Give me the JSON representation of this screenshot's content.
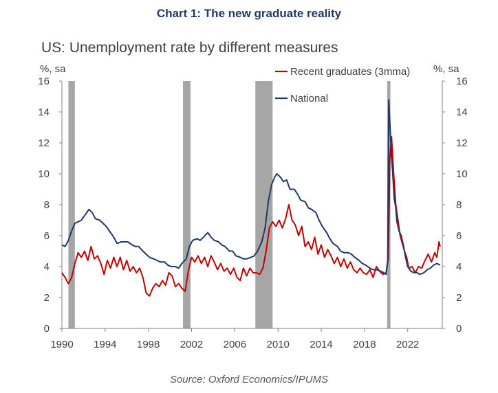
{
  "header": {
    "title": "Chart 1: The new graduate reality"
  },
  "footer": {
    "source": "Source: Oxford Economics/IPUMS"
  },
  "colors": {
    "recent_graduates": "#c00000",
    "national": "#1f3864",
    "recession": "#a6a6a6",
    "title": "#1f3864"
  },
  "chart_data": {
    "type": "line",
    "title": "US: Unemployment rate by different measures",
    "ylabel_left": "%, sa",
    "ylabel_right": "%, sa",
    "xlim": [
      1990,
      2025.2
    ],
    "ylim": [
      0,
      16
    ],
    "x_ticks": [
      "1990",
      "1994",
      "1998",
      "2002",
      "2006",
      "2010",
      "2014",
      "2018",
      "2022"
    ],
    "y_ticks": [
      "0",
      "2",
      "4",
      "6",
      "8",
      "10",
      "12",
      "14",
      "16"
    ],
    "legend_position": "top-right",
    "recessions": [
      [
        1990.6,
        1991.2
      ],
      [
        2001.2,
        2001.9
      ],
      [
        2007.9,
        2009.5
      ],
      [
        2020.1,
        2020.4
      ]
    ],
    "series": [
      {
        "name": "Recent graduates (3mma)",
        "color": "#c00000",
        "points": [
          [
            1990.0,
            3.6
          ],
          [
            1990.3,
            3.3
          ],
          [
            1990.6,
            2.9
          ],
          [
            1990.9,
            3.3
          ],
          [
            1991.2,
            4.2
          ],
          [
            1991.5,
            4.9
          ],
          [
            1991.8,
            4.6
          ],
          [
            1992.1,
            5.0
          ],
          [
            1992.4,
            4.4
          ],
          [
            1992.7,
            5.3
          ],
          [
            1993.0,
            4.5
          ],
          [
            1993.3,
            4.7
          ],
          [
            1993.6,
            4.2
          ],
          [
            1993.9,
            3.5
          ],
          [
            1994.2,
            4.4
          ],
          [
            1994.5,
            3.9
          ],
          [
            1994.8,
            4.6
          ],
          [
            1995.1,
            4.0
          ],
          [
            1995.4,
            4.6
          ],
          [
            1995.7,
            3.8
          ],
          [
            1996.0,
            4.4
          ],
          [
            1996.3,
            3.7
          ],
          [
            1996.6,
            4.0
          ],
          [
            1996.9,
            3.6
          ],
          [
            1997.2,
            3.9
          ],
          [
            1997.5,
            3.3
          ],
          [
            1997.8,
            2.3
          ],
          [
            1998.1,
            2.1
          ],
          [
            1998.4,
            2.6
          ],
          [
            1998.7,
            2.9
          ],
          [
            1999.0,
            2.7
          ],
          [
            1999.3,
            3.1
          ],
          [
            1999.6,
            2.8
          ],
          [
            1999.9,
            3.6
          ],
          [
            2000.2,
            3.4
          ],
          [
            2000.5,
            2.7
          ],
          [
            2000.8,
            2.9
          ],
          [
            2001.1,
            2.6
          ],
          [
            2001.4,
            2.4
          ],
          [
            2001.7,
            3.7
          ],
          [
            2002.0,
            4.6
          ],
          [
            2002.3,
            4.3
          ],
          [
            2002.6,
            4.7
          ],
          [
            2002.9,
            4.2
          ],
          [
            2003.2,
            4.6
          ],
          [
            2003.5,
            4.0
          ],
          [
            2003.8,
            4.7
          ],
          [
            2004.1,
            4.3
          ],
          [
            2004.4,
            3.8
          ],
          [
            2004.7,
            4.2
          ],
          [
            2005.0,
            3.7
          ],
          [
            2005.3,
            3.9
          ],
          [
            2005.6,
            3.5
          ],
          [
            2005.9,
            3.9
          ],
          [
            2006.2,
            3.3
          ],
          [
            2006.5,
            3.1
          ],
          [
            2006.8,
            3.9
          ],
          [
            2007.1,
            3.4
          ],
          [
            2007.4,
            3.9
          ],
          [
            2007.7,
            3.6
          ],
          [
            2008.0,
            3.6
          ],
          [
            2008.3,
            3.5
          ],
          [
            2008.6,
            3.9
          ],
          [
            2008.9,
            5.0
          ],
          [
            2009.2,
            6.5
          ],
          [
            2009.5,
            6.9
          ],
          [
            2009.8,
            6.6
          ],
          [
            2010.1,
            7.0
          ],
          [
            2010.4,
            6.5
          ],
          [
            2010.7,
            7.1
          ],
          [
            2011.0,
            8.0
          ],
          [
            2011.3,
            7.0
          ],
          [
            2011.6,
            6.7
          ],
          [
            2011.9,
            6.0
          ],
          [
            2012.2,
            6.6
          ],
          [
            2012.5,
            5.3
          ],
          [
            2012.8,
            5.6
          ],
          [
            2013.1,
            5.1
          ],
          [
            2013.4,
            5.9
          ],
          [
            2013.7,
            4.8
          ],
          [
            2014.0,
            5.4
          ],
          [
            2014.3,
            4.6
          ],
          [
            2014.6,
            5.1
          ],
          [
            2014.9,
            4.7
          ],
          [
            2015.2,
            4.2
          ],
          [
            2015.5,
            4.6
          ],
          [
            2015.8,
            4.0
          ],
          [
            2016.1,
            4.5
          ],
          [
            2016.4,
            3.9
          ],
          [
            2016.7,
            4.3
          ],
          [
            2017.0,
            3.8
          ],
          [
            2017.3,
            3.6
          ],
          [
            2017.6,
            3.9
          ],
          [
            2017.9,
            3.6
          ],
          [
            2018.2,
            3.5
          ],
          [
            2018.5,
            3.8
          ],
          [
            2018.8,
            3.3
          ],
          [
            2019.1,
            4.0
          ],
          [
            2019.4,
            3.7
          ],
          [
            2019.7,
            3.5
          ],
          [
            2020.0,
            3.6
          ],
          [
            2020.2,
            4.5
          ],
          [
            2020.35,
            11.0
          ],
          [
            2020.5,
            12.4
          ],
          [
            2020.7,
            10.0
          ],
          [
            2020.9,
            8.0
          ],
          [
            2021.1,
            7.0
          ],
          [
            2021.3,
            6.0
          ],
          [
            2021.5,
            5.5
          ],
          [
            2021.7,
            5.0
          ],
          [
            2021.9,
            4.6
          ],
          [
            2022.1,
            3.9
          ],
          [
            2022.4,
            4.0
          ],
          [
            2022.7,
            3.6
          ],
          [
            2023.0,
            4.0
          ],
          [
            2023.3,
            3.9
          ],
          [
            2023.6,
            4.4
          ],
          [
            2023.9,
            4.8
          ],
          [
            2024.2,
            4.3
          ],
          [
            2024.5,
            4.9
          ],
          [
            2024.7,
            4.6
          ],
          [
            2024.9,
            5.6
          ],
          [
            2025.0,
            5.3
          ]
        ]
      },
      {
        "name": "National",
        "color": "#1f3864",
        "points": [
          [
            1990.0,
            5.4
          ],
          [
            1990.3,
            5.3
          ],
          [
            1990.6,
            5.7
          ],
          [
            1990.9,
            6.3
          ],
          [
            1991.2,
            6.8
          ],
          [
            1991.5,
            6.9
          ],
          [
            1991.8,
            7.0
          ],
          [
            1992.1,
            7.3
          ],
          [
            1992.5,
            7.7
          ],
          [
            1992.8,
            7.5
          ],
          [
            1993.1,
            7.1
          ],
          [
            1993.5,
            7.0
          ],
          [
            1993.8,
            6.8
          ],
          [
            1994.1,
            6.6
          ],
          [
            1994.5,
            6.2
          ],
          [
            1994.8,
            5.9
          ],
          [
            1995.1,
            5.5
          ],
          [
            1995.5,
            5.6
          ],
          [
            1995.8,
            5.6
          ],
          [
            1996.1,
            5.6
          ],
          [
            1996.5,
            5.4
          ],
          [
            1996.8,
            5.3
          ],
          [
            1997.1,
            5.3
          ],
          [
            1997.5,
            5.0
          ],
          [
            1997.8,
            4.8
          ],
          [
            1998.1,
            4.6
          ],
          [
            1998.5,
            4.5
          ],
          [
            1998.8,
            4.4
          ],
          [
            1999.1,
            4.3
          ],
          [
            1999.5,
            4.3
          ],
          [
            1999.8,
            4.1
          ],
          [
            2000.1,
            4.0
          ],
          [
            2000.5,
            4.0
          ],
          [
            2000.8,
            3.9
          ],
          [
            2001.1,
            4.2
          ],
          [
            2001.5,
            4.5
          ],
          [
            2001.8,
            5.3
          ],
          [
            2002.1,
            5.7
          ],
          [
            2002.5,
            5.8
          ],
          [
            2002.8,
            5.7
          ],
          [
            2003.1,
            5.9
          ],
          [
            2003.5,
            6.2
          ],
          [
            2003.8,
            5.9
          ],
          [
            2004.1,
            5.7
          ],
          [
            2004.5,
            5.6
          ],
          [
            2004.8,
            5.4
          ],
          [
            2005.1,
            5.3
          ],
          [
            2005.5,
            5.0
          ],
          [
            2005.8,
            5.0
          ],
          [
            2006.1,
            4.7
          ],
          [
            2006.5,
            4.6
          ],
          [
            2006.8,
            4.5
          ],
          [
            2007.1,
            4.5
          ],
          [
            2007.5,
            4.6
          ],
          [
            2007.8,
            4.7
          ],
          [
            2008.1,
            5.0
          ],
          [
            2008.5,
            5.6
          ],
          [
            2008.8,
            6.5
          ],
          [
            2009.1,
            8.2
          ],
          [
            2009.4,
            9.3
          ],
          [
            2009.7,
            9.8
          ],
          [
            2009.9,
            10.0
          ],
          [
            2010.2,
            9.8
          ],
          [
            2010.5,
            9.5
          ],
          [
            2010.8,
            9.6
          ],
          [
            2011.1,
            9.0
          ],
          [
            2011.5,
            9.0
          ],
          [
            2011.8,
            8.7
          ],
          [
            2012.1,
            8.3
          ],
          [
            2012.5,
            8.2
          ],
          [
            2012.8,
            7.8
          ],
          [
            2013.1,
            7.7
          ],
          [
            2013.5,
            7.5
          ],
          [
            2013.8,
            7.0
          ],
          [
            2014.1,
            6.6
          ],
          [
            2014.5,
            6.2
          ],
          [
            2014.8,
            5.8
          ],
          [
            2015.1,
            5.5
          ],
          [
            2015.5,
            5.3
          ],
          [
            2015.8,
            5.0
          ],
          [
            2016.1,
            4.9
          ],
          [
            2016.5,
            4.9
          ],
          [
            2016.8,
            4.8
          ],
          [
            2017.1,
            4.6
          ],
          [
            2017.5,
            4.4
          ],
          [
            2017.8,
            4.2
          ],
          [
            2018.1,
            4.1
          ],
          [
            2018.5,
            3.9
          ],
          [
            2018.8,
            3.8
          ],
          [
            2019.1,
            3.8
          ],
          [
            2019.5,
            3.7
          ],
          [
            2019.8,
            3.6
          ],
          [
            2020.0,
            3.5
          ],
          [
            2020.15,
            4.4
          ],
          [
            2020.25,
            14.8
          ],
          [
            2020.35,
            13.3
          ],
          [
            2020.5,
            11.1
          ],
          [
            2020.6,
            10.2
          ],
          [
            2020.75,
            8.4
          ],
          [
            2020.9,
            7.8
          ],
          [
            2021.0,
            6.9
          ],
          [
            2021.2,
            6.3
          ],
          [
            2021.4,
            6.0
          ],
          [
            2021.6,
            5.4
          ],
          [
            2021.8,
            4.6
          ],
          [
            2022.0,
            4.0
          ],
          [
            2022.3,
            3.7
          ],
          [
            2022.6,
            3.6
          ],
          [
            2022.9,
            3.6
          ],
          [
            2023.1,
            3.5
          ],
          [
            2023.5,
            3.6
          ],
          [
            2023.8,
            3.8
          ],
          [
            2024.1,
            3.9
          ],
          [
            2024.4,
            4.1
          ],
          [
            2024.7,
            4.2
          ],
          [
            2025.0,
            4.1
          ]
        ]
      }
    ]
  }
}
